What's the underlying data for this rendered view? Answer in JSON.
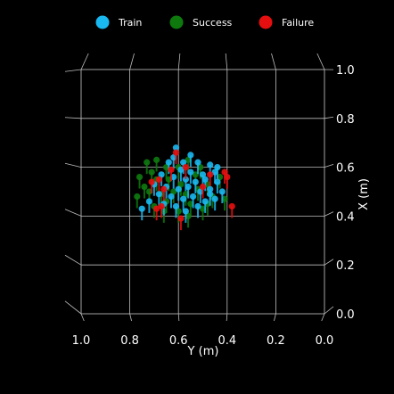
{
  "chart_data": {
    "type": "scatter",
    "projection": "3d",
    "legend_position": "top-center",
    "xlabel": "Y (m)",
    "ylabel": "X (m)",
    "x_range": [
      1.0,
      0.0
    ],
    "y_range": [
      0.0,
      1.0
    ],
    "x_ticks": [
      "1.0",
      "0.8",
      "0.6",
      "0.4",
      "0.2",
      "0.0"
    ],
    "y_ticks": [
      "0.0",
      "0.2",
      "0.4",
      "0.6",
      "0.8",
      "1.0"
    ],
    "grid": true,
    "series": [
      {
        "name": "Train",
        "color": "#1ab8f0",
        "points": [
          [
            0.61,
            0.68
          ],
          [
            0.55,
            0.65
          ],
          [
            0.58,
            0.62
          ],
          [
            0.52,
            0.62
          ],
          [
            0.47,
            0.61
          ],
          [
            0.64,
            0.62
          ],
          [
            0.59,
            0.59
          ],
          [
            0.55,
            0.58
          ],
          [
            0.5,
            0.57
          ],
          [
            0.45,
            0.58
          ],
          [
            0.67,
            0.57
          ],
          [
            0.62,
            0.56
          ],
          [
            0.57,
            0.55
          ],
          [
            0.53,
            0.54
          ],
          [
            0.49,
            0.55
          ],
          [
            0.44,
            0.54
          ],
          [
            0.7,
            0.53
          ],
          [
            0.65,
            0.52
          ],
          [
            0.6,
            0.51
          ],
          [
            0.56,
            0.52
          ],
          [
            0.51,
            0.5
          ],
          [
            0.47,
            0.51
          ],
          [
            0.42,
            0.5
          ],
          [
            0.68,
            0.49
          ],
          [
            0.63,
            0.48
          ],
          [
            0.58,
            0.47
          ],
          [
            0.54,
            0.48
          ],
          [
            0.49,
            0.46
          ],
          [
            0.45,
            0.47
          ],
          [
            0.72,
            0.46
          ],
          [
            0.66,
            0.45
          ],
          [
            0.61,
            0.44
          ],
          [
            0.52,
            0.44
          ],
          [
            0.75,
            0.43
          ],
          [
            0.57,
            0.42
          ],
          [
            0.47,
            0.49
          ],
          [
            0.44,
            0.6
          ],
          [
            0.62,
            0.64
          ]
        ]
      },
      {
        "name": "Success",
        "color": "#0e7a0e",
        "points": [
          [
            0.73,
            0.62
          ],
          [
            0.69,
            0.63
          ],
          [
            0.65,
            0.6
          ],
          [
            0.71,
            0.58
          ],
          [
            0.76,
            0.56
          ],
          [
            0.6,
            0.6
          ],
          [
            0.56,
            0.63
          ],
          [
            0.51,
            0.6
          ],
          [
            0.74,
            0.52
          ],
          [
            0.69,
            0.55
          ],
          [
            0.64,
            0.55
          ],
          [
            0.59,
            0.53
          ],
          [
            0.53,
            0.57
          ],
          [
            0.48,
            0.53
          ],
          [
            0.43,
            0.56
          ],
          [
            0.77,
            0.48
          ],
          [
            0.72,
            0.5
          ],
          [
            0.67,
            0.49
          ],
          [
            0.62,
            0.5
          ],
          [
            0.57,
            0.49
          ],
          [
            0.52,
            0.51
          ],
          [
            0.46,
            0.48
          ],
          [
            0.41,
            0.47
          ],
          [
            0.7,
            0.44
          ],
          [
            0.65,
            0.46
          ],
          [
            0.55,
            0.45
          ],
          [
            0.5,
            0.43
          ],
          [
            0.6,
            0.42
          ],
          [
            0.56,
            0.4
          ],
          [
            0.66,
            0.42
          ],
          [
            0.48,
            0.45
          ]
        ]
      },
      {
        "name": "Failure",
        "color": "#e60f0f",
        "points": [
          [
            0.61,
            0.66
          ],
          [
            0.57,
            0.6
          ],
          [
            0.41,
            0.58
          ],
          [
            0.4,
            0.56
          ],
          [
            0.47,
            0.57
          ],
          [
            0.68,
            0.55
          ],
          [
            0.71,
            0.54
          ],
          [
            0.66,
            0.51
          ],
          [
            0.63,
            0.59
          ],
          [
            0.67,
            0.44
          ],
          [
            0.69,
            0.43
          ],
          [
            0.59,
            0.39
          ],
          [
            0.38,
            0.44
          ],
          [
            0.5,
            0.52
          ]
        ]
      }
    ]
  }
}
